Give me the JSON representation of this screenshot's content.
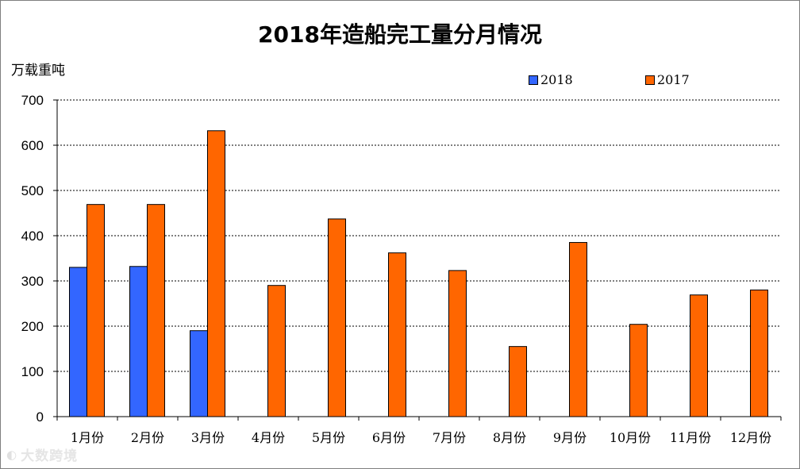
{
  "chart_data": {
    "type": "bar",
    "title": "2018年造船完工量分月情况",
    "ylabel": "万载重吨",
    "xlabel": "",
    "categories": [
      "1月份",
      "2月份",
      "3月份",
      "4月份",
      "5月份",
      "6月份",
      "7月份",
      "8月份",
      "9月份",
      "10月份",
      "11月份",
      "12月份"
    ],
    "series": [
      {
        "name": "2018",
        "color": "#3366ff",
        "values": [
          330,
          332,
          190,
          null,
          null,
          null,
          null,
          null,
          null,
          null,
          null,
          null
        ]
      },
      {
        "name": "2017",
        "color": "#ff6600",
        "values": [
          469,
          469,
          632,
          290,
          437,
          362,
          323,
          155,
          385,
          204,
          269,
          280
        ]
      }
    ],
    "ylim": [
      0,
      700
    ],
    "yticks": [
      0,
      100,
      200,
      300,
      400,
      500,
      600,
      700
    ],
    "grid": "horizontal-dashed",
    "legend_position": "top-right"
  },
  "watermark": {
    "text": "大数跨境",
    "icon": "logo-icon"
  }
}
